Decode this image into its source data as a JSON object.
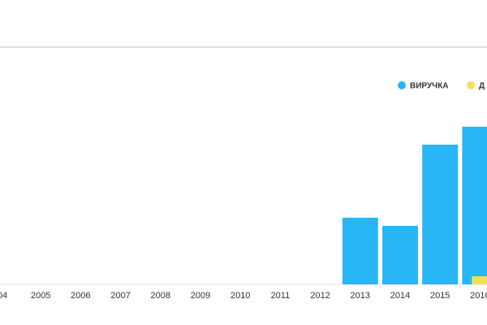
{
  "chart_data": {
    "type": "bar",
    "categories": [
      "04",
      "2005",
      "2006",
      "2007",
      "2008",
      "2009",
      "2010",
      "2011",
      "2012",
      "2013",
      "2014",
      "2015",
      "2016"
    ],
    "series": [
      {
        "name": "ВИРУЧКА",
        "color": "#29b6f6",
        "values": [
          0,
          0,
          0,
          0,
          0,
          0,
          0,
          0,
          0,
          82,
          72,
          172,
          194
        ]
      },
      {
        "name": "Д",
        "color": "#f3e05a",
        "values": [
          0,
          0,
          0,
          0,
          0,
          0,
          0,
          0,
          0,
          0,
          0,
          0,
          10
        ]
      }
    ],
    "ylim": [
      0,
      290
    ]
  }
}
